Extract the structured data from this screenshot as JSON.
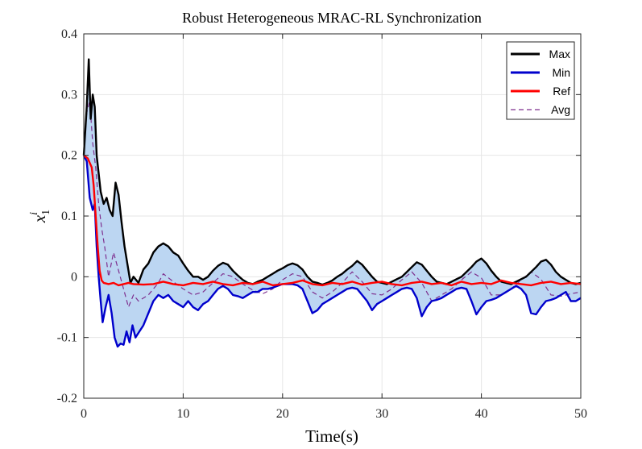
{
  "chart_data": {
    "type": "line",
    "title": "Robust Heterogeneous MRAC-RL Synchronization",
    "xlabel": "Time(s)",
    "ylabel_base": "x",
    "ylabel_sub": "1",
    "ylabel_sup": "i",
    "xlim": [
      0,
      50
    ],
    "ylim": [
      -0.2,
      0.4
    ],
    "xticks": [
      0,
      10,
      20,
      30,
      40,
      50
    ],
    "xtick_labels": [
      "0",
      "10",
      "20",
      "30",
      "40",
      "50"
    ],
    "yticks": [
      -0.2,
      -0.1,
      0,
      0.1,
      0.2,
      0.3,
      0.4
    ],
    "ytick_labels": [
      "-0.2",
      "-0.1",
      "0",
      "0.1",
      "0.2",
      "0.3",
      "0.4"
    ],
    "grid": true,
    "legend_position": "top-right",
    "band": {
      "between": [
        "Max",
        "Min"
      ],
      "color": "#bcd6f2"
    },
    "series": [
      {
        "name": "Max",
        "color": "#000000",
        "style": "solid",
        "x": [
          0,
          0.3,
          0.5,
          0.7,
          0.9,
          1.1,
          1.3,
          1.5,
          1.7,
          2.0,
          2.3,
          2.6,
          2.9,
          3.2,
          3.5,
          3.8,
          4.1,
          4.4,
          4.7,
          5.0,
          5.5,
          6.0,
          6.5,
          7.0,
          7.5,
          8.0,
          8.5,
          9.0,
          9.5,
          10.0,
          10.5,
          11.0,
          11.5,
          12.0,
          12.5,
          13.0,
          13.5,
          14.0,
          14.5,
          15.0,
          15.5,
          16.0,
          16.5,
          17.0,
          17.5,
          18.0,
          18.5,
          19.0,
          19.5,
          20.0,
          20.5,
          21.0,
          21.5,
          22.0,
          22.5,
          23.0,
          23.5,
          24.0,
          24.5,
          25.0,
          25.5,
          26.0,
          26.5,
          27.0,
          27.5,
          28.0,
          28.5,
          29.0,
          29.5,
          30.0,
          30.5,
          31.0,
          31.5,
          32.0,
          32.5,
          33.0,
          33.5,
          34.0,
          34.5,
          35.0,
          35.5,
          36.0,
          36.5,
          37.0,
          37.5,
          38.0,
          38.5,
          39.0,
          39.5,
          40.0,
          40.5,
          41.0,
          41.5,
          42.0,
          42.5,
          43.0,
          43.5,
          44.0,
          44.5,
          45.0,
          45.5,
          46.0,
          46.5,
          47.0,
          47.5,
          48.0,
          48.5,
          49.0,
          49.5,
          50.0
        ],
        "values": [
          0.2,
          0.28,
          0.358,
          0.26,
          0.3,
          0.28,
          0.2,
          0.17,
          0.14,
          0.12,
          0.13,
          0.11,
          0.1,
          0.155,
          0.135,
          0.09,
          0.05,
          0.02,
          -0.01,
          0.0,
          -0.01,
          0.012,
          0.022,
          0.04,
          0.05,
          0.055,
          0.05,
          0.04,
          0.035,
          0.022,
          0.01,
          0.0,
          0.0,
          -0.005,
          0.0,
          0.01,
          0.018,
          0.023,
          0.02,
          0.01,
          0.002,
          -0.005,
          -0.01,
          -0.012,
          -0.008,
          -0.005,
          0.0,
          0.005,
          0.01,
          0.014,
          0.019,
          0.022,
          0.019,
          0.012,
          0.0,
          -0.008,
          -0.01,
          -0.013,
          -0.01,
          -0.006,
          0.0,
          0.005,
          0.012,
          0.018,
          0.026,
          0.02,
          0.01,
          0.0,
          -0.008,
          -0.01,
          -0.012,
          -0.008,
          -0.004,
          0.0,
          0.008,
          0.016,
          0.024,
          0.02,
          0.01,
          0.0,
          -0.008,
          -0.01,
          -0.012,
          -0.008,
          -0.004,
          0.0,
          0.008,
          0.016,
          0.025,
          0.03,
          0.022,
          0.01,
          0.0,
          -0.008,
          -0.01,
          -0.012,
          -0.008,
          -0.004,
          0.0,
          0.008,
          0.016,
          0.025,
          0.028,
          0.02,
          0.008,
          0.0,
          -0.005,
          -0.01,
          -0.012,
          -0.01
        ]
      },
      {
        "name": "Min",
        "color": "#0000cc",
        "style": "solid",
        "x": [
          0,
          0.3,
          0.6,
          0.9,
          1.1,
          1.3,
          1.5,
          1.7,
          1.9,
          2.2,
          2.5,
          2.8,
          3.1,
          3.4,
          3.7,
          4.0,
          4.3,
          4.6,
          4.9,
          5.2,
          5.6,
          6.0,
          6.5,
          7.0,
          7.5,
          8.0,
          8.5,
          9.0,
          9.5,
          10.0,
          10.5,
          11.0,
          11.5,
          12.0,
          12.5,
          13.0,
          13.5,
          14.0,
          14.5,
          15.0,
          15.5,
          16.0,
          16.5,
          17.0,
          17.5,
          18.0,
          18.5,
          19.0,
          19.5,
          20.0,
          20.5,
          21.0,
          21.5,
          22.0,
          22.5,
          23.0,
          23.5,
          24.0,
          24.5,
          25.0,
          25.5,
          26.0,
          26.5,
          27.0,
          27.5,
          28.0,
          28.5,
          29.0,
          29.5,
          30.0,
          30.5,
          31.0,
          31.5,
          32.0,
          32.5,
          33.0,
          33.5,
          34.0,
          34.5,
          35.0,
          35.5,
          36.0,
          36.5,
          37.0,
          37.5,
          38.0,
          38.5,
          39.0,
          39.5,
          40.0,
          40.5,
          41.0,
          41.5,
          42.0,
          42.5,
          43.0,
          43.5,
          44.0,
          44.5,
          45.0,
          45.5,
          46.0,
          46.5,
          47.0,
          47.5,
          48.0,
          48.5,
          49.0,
          49.5,
          50.0
        ],
        "values": [
          0.2,
          0.19,
          0.13,
          0.11,
          0.12,
          0.05,
          0.0,
          -0.04,
          -0.075,
          -0.05,
          -0.03,
          -0.06,
          -0.1,
          -0.115,
          -0.11,
          -0.112,
          -0.09,
          -0.108,
          -0.08,
          -0.1,
          -0.09,
          -0.08,
          -0.06,
          -0.04,
          -0.03,
          -0.035,
          -0.03,
          -0.04,
          -0.045,
          -0.05,
          -0.04,
          -0.05,
          -0.055,
          -0.045,
          -0.04,
          -0.03,
          -0.02,
          -0.015,
          -0.02,
          -0.03,
          -0.032,
          -0.035,
          -0.03,
          -0.025,
          -0.025,
          -0.02,
          -0.02,
          -0.018,
          -0.015,
          -0.012,
          -0.012,
          -0.012,
          -0.014,
          -0.02,
          -0.04,
          -0.06,
          -0.055,
          -0.045,
          -0.04,
          -0.035,
          -0.03,
          -0.025,
          -0.02,
          -0.018,
          -0.02,
          -0.03,
          -0.04,
          -0.055,
          -0.045,
          -0.04,
          -0.035,
          -0.03,
          -0.025,
          -0.02,
          -0.018,
          -0.02,
          -0.035,
          -0.065,
          -0.05,
          -0.04,
          -0.038,
          -0.035,
          -0.03,
          -0.025,
          -0.02,
          -0.018,
          -0.02,
          -0.04,
          -0.062,
          -0.05,
          -0.04,
          -0.038,
          -0.035,
          -0.03,
          -0.025,
          -0.02,
          -0.015,
          -0.02,
          -0.03,
          -0.06,
          -0.062,
          -0.05,
          -0.04,
          -0.038,
          -0.035,
          -0.03,
          -0.025,
          -0.04,
          -0.04,
          -0.035
        ]
      },
      {
        "name": "Ref",
        "color": "#ff0000",
        "style": "solid",
        "x": [
          0,
          0.4,
          0.8,
          1.0,
          1.2,
          1.4,
          1.6,
          1.8,
          2.0,
          2.5,
          3.0,
          3.5,
          4.0,
          4.5,
          5.0,
          6.0,
          7.0,
          8.0,
          9.0,
          10.0,
          11.0,
          12.0,
          13.0,
          14.0,
          15.0,
          16.0,
          17.0,
          18.0,
          19.0,
          20.0,
          21.0,
          22.0,
          23.0,
          24.0,
          25.0,
          26.0,
          27.0,
          28.0,
          29.0,
          30.0,
          31.0,
          32.0,
          33.0,
          34.0,
          35.0,
          36.0,
          37.0,
          38.0,
          39.0,
          40.0,
          41.0,
          42.0,
          43.0,
          44.0,
          45.0,
          46.0,
          47.0,
          48.0,
          49.0,
          50.0
        ],
        "values": [
          0.2,
          0.195,
          0.18,
          0.15,
          0.1,
          0.05,
          0.01,
          -0.006,
          -0.01,
          -0.012,
          -0.01,
          -0.014,
          -0.012,
          -0.01,
          -0.012,
          -0.013,
          -0.012,
          -0.008,
          -0.012,
          -0.014,
          -0.01,
          -0.012,
          -0.008,
          -0.012,
          -0.014,
          -0.01,
          -0.012,
          -0.008,
          -0.014,
          -0.012,
          -0.01,
          -0.006,
          -0.012,
          -0.014,
          -0.01,
          -0.012,
          -0.008,
          -0.013,
          -0.01,
          -0.008,
          -0.012,
          -0.014,
          -0.01,
          -0.008,
          -0.012,
          -0.01,
          -0.014,
          -0.008,
          -0.012,
          -0.01,
          -0.012,
          -0.006,
          -0.01,
          -0.012,
          -0.014,
          -0.01,
          -0.008,
          -0.012,
          -0.01,
          -0.012
        ]
      },
      {
        "name": "Avg",
        "color": "#7e2f8e",
        "style": "dashed",
        "x": [
          0,
          0.3,
          0.6,
          0.9,
          1.2,
          1.5,
          1.8,
          2.1,
          2.5,
          3.0,
          3.5,
          4.0,
          4.5,
          5.0,
          5.5,
          6.0,
          6.5,
          7.0,
          7.5,
          8.0,
          9.0,
          10.0,
          11.0,
          12.0,
          13.0,
          14.0,
          15.0,
          16.0,
          17.0,
          18.0,
          19.0,
          20.0,
          21.0,
          22.0,
          23.0,
          24.0,
          25.0,
          26.0,
          27.0,
          28.0,
          29.0,
          30.0,
          31.0,
          32.0,
          33.0,
          34.0,
          35.0,
          36.0,
          37.0,
          38.0,
          39.0,
          40.0,
          41.0,
          42.0,
          43.0,
          44.0,
          45.0,
          46.0,
          47.0,
          48.0,
          49.0,
          50.0
        ],
        "values": [
          0.2,
          0.27,
          0.29,
          0.22,
          0.18,
          0.12,
          0.08,
          0.05,
          0.0,
          0.04,
          0.01,
          -0.02,
          -0.05,
          -0.03,
          -0.04,
          -0.035,
          -0.03,
          -0.02,
          -0.01,
          0.005,
          -0.008,
          -0.02,
          -0.03,
          -0.025,
          -0.01,
          0.005,
          0.0,
          -0.012,
          -0.022,
          -0.028,
          -0.02,
          -0.005,
          0.005,
          0.0,
          -0.025,
          -0.035,
          -0.025,
          -0.01,
          0.008,
          -0.008,
          -0.028,
          -0.03,
          -0.02,
          -0.005,
          0.008,
          -0.01,
          -0.04,
          -0.03,
          -0.02,
          -0.005,
          0.008,
          -0.002,
          -0.03,
          -0.03,
          -0.02,
          -0.005,
          0.008,
          -0.004,
          -0.03,
          -0.032,
          -0.028,
          -0.025
        ]
      }
    ]
  }
}
